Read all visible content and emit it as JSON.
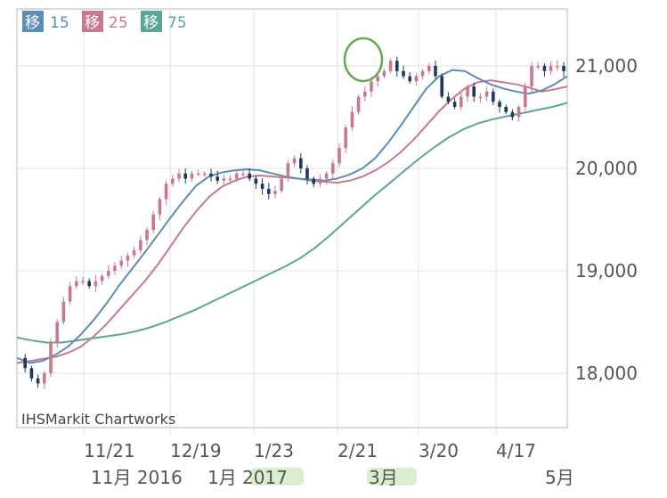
{
  "chart_data": {
    "type": "candlestick",
    "legend": [
      {
        "badge": "移",
        "period": "15",
        "color": "#5b8db8"
      },
      {
        "badge": "移",
        "period": "25",
        "color": "#c77a8c"
      },
      {
        "badge": "移",
        "period": "75",
        "color": "#5aa595"
      }
    ],
    "credit": "IHSMarkit Chartworks",
    "y_axis": {
      "ticks": [
        18000,
        19000,
        20000,
        21000
      ],
      "tick_labels": [
        "18,000",
        "19,000",
        "20,000",
        "21,000"
      ],
      "ylim": [
        17500,
        21500
      ]
    },
    "x_axis": {
      "date_ticks": [
        "11/21",
        "12/19",
        "1/23",
        "2/21",
        "3/20",
        "4/17"
      ],
      "month_labels": [
        "11月 2016",
        "1月 2017",
        "3月",
        "5月"
      ]
    },
    "series": {
      "ma15": [
        18150,
        18100,
        18120,
        18180,
        18260,
        18380,
        18520,
        18680,
        18860,
        19020,
        19180,
        19350,
        19520,
        19680,
        19830,
        19920,
        19960,
        19980,
        19990,
        19980,
        19950,
        19920,
        19900,
        19890,
        19880,
        19900,
        19940,
        20000,
        20100,
        20250,
        20420,
        20600,
        20780,
        20900,
        20960,
        20950,
        20880,
        20820,
        20780,
        20750,
        20730,
        20760,
        20820,
        20900
      ],
      "ma25": [
        18100,
        18120,
        18140,
        18160,
        18200,
        18260,
        18360,
        18480,
        18620,
        18760,
        18900,
        19060,
        19240,
        19420,
        19580,
        19720,
        19820,
        19880,
        19920,
        19930,
        19920,
        19910,
        19900,
        19880,
        19870,
        19860,
        19880,
        19920,
        19980,
        20060,
        20160,
        20280,
        20420,
        20560,
        20680,
        20780,
        20840,
        20860,
        20840,
        20820,
        20790,
        20750,
        20770,
        20800
      ],
      "ma75": [
        18350,
        18320,
        18300,
        18300,
        18320,
        18340,
        18360,
        18380,
        18410,
        18450,
        18500,
        18560,
        18620,
        18690,
        18760,
        18830,
        18900,
        18970,
        19040,
        19120,
        19220,
        19340,
        19470,
        19600,
        19730,
        19850,
        19970,
        20090,
        20200,
        20300,
        20380,
        20440,
        20480,
        20510,
        20540,
        20570,
        20600,
        20640
      ],
      "candle_color_up": "#c77a8c",
      "candle_color_down": "#1f3a5f",
      "annotation_circle_color": "#6aa84f"
    }
  }
}
